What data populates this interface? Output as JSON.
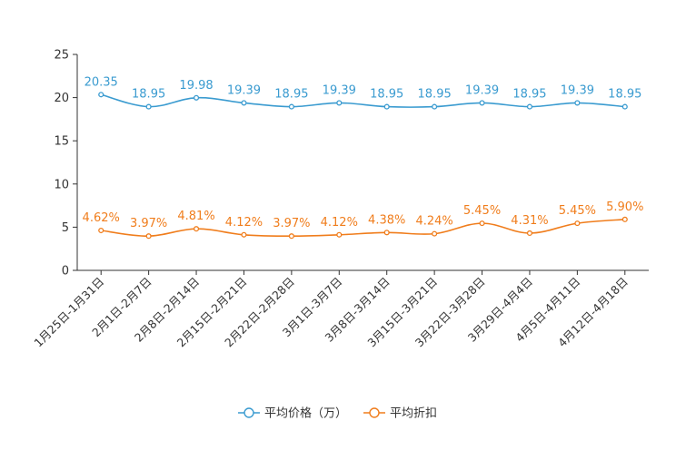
{
  "chart_data": {
    "type": "line",
    "categories": [
      "1月25日-1月31日",
      "2月1日-2月7日",
      "2月8日-2月14日",
      "2月15日-2月21日",
      "2月22日-2月28日",
      "3月1日-3月7日",
      "3月8日-3月14日",
      "3月15日-3月21日",
      "3月22日-3月28日",
      "3月29日-4月4日",
      "4月5日-4月11日",
      "4月12日-4月18日"
    ],
    "ylim": [
      0,
      25
    ],
    "yticks": [
      0,
      5,
      10,
      15,
      20,
      25
    ],
    "series": [
      {
        "name": "平均价格（万）",
        "color": "#3a9bd0",
        "values": [
          20.35,
          18.95,
          19.98,
          19.39,
          18.95,
          19.39,
          18.95,
          18.95,
          19.39,
          18.95,
          19.39,
          18.95
        ],
        "labels": [
          "20.35",
          "18.95",
          "19.98",
          "19.39",
          "18.95",
          "19.39",
          "18.95",
          "18.95",
          "19.39",
          "18.95",
          "19.39",
          "18.95"
        ]
      },
      {
        "name": "平均折扣",
        "color": "#f07d1c",
        "values": [
          4.62,
          3.97,
          4.81,
          4.12,
          3.97,
          4.12,
          4.38,
          4.24,
          5.45,
          4.31,
          5.45,
          5.9
        ],
        "labels": [
          "4.62%",
          "3.97%",
          "4.81%",
          "4.12%",
          "3.97%",
          "4.12%",
          "4.38%",
          "4.24%",
          "5.45%",
          "4.31%",
          "5.45%",
          "5.90%"
        ]
      }
    ],
    "legend_position": "bottom-center",
    "grid": false
  }
}
